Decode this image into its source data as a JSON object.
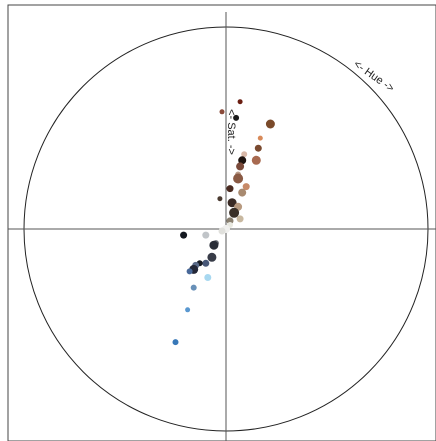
{
  "chart_data": {
    "type": "scatter",
    "title": "",
    "xlabel": "",
    "ylabel": "",
    "annotations": {
      "hue_label": "<- Hue ->",
      "sat_label": "<- Sat. ->"
    },
    "coordinate_system": "polar-colour-wheel",
    "grid": false,
    "legend": "none",
    "xlim": [
      -1,
      1
    ],
    "ylim": [
      -1,
      1
    ],
    "points": [
      {
        "x": 0.07,
        "y": 0.63,
        "size": 2.5,
        "color": "#6b1e12"
      },
      {
        "x": -0.02,
        "y": 0.58,
        "size": 2.5,
        "color": "#8a4a3a"
      },
      {
        "x": 0.05,
        "y": 0.55,
        "size": 3.0,
        "color": "#1a1a1a"
      },
      {
        "x": 0.22,
        "y": 0.52,
        "size": 4.5,
        "color": "#7a4a2a"
      },
      {
        "x": 0.17,
        "y": 0.45,
        "size": 2.5,
        "color": "#d88a5a"
      },
      {
        "x": 0.16,
        "y": 0.4,
        "size": 3.5,
        "color": "#7a4a30"
      },
      {
        "x": 0.09,
        "y": 0.37,
        "size": 3.0,
        "color": "#d8b8a8"
      },
      {
        "x": 0.15,
        "y": 0.34,
        "size": 4.5,
        "color": "#a86a50"
      },
      {
        "x": 0.08,
        "y": 0.34,
        "size": 4.0,
        "color": "#1e1410"
      },
      {
        "x": 0.07,
        "y": 0.31,
        "size": 4.0,
        "color": "#7a4a3a"
      },
      {
        "x": 0.06,
        "y": 0.27,
        "size": 3.0,
        "color": "#b89a88"
      },
      {
        "x": 0.06,
        "y": 0.25,
        "size": 5.0,
        "color": "#8a5a44"
      },
      {
        "x": 0.1,
        "y": 0.21,
        "size": 3.5,
        "color": "#c88a68"
      },
      {
        "x": 0.02,
        "y": 0.2,
        "size": 3.5,
        "color": "#4a2a20"
      },
      {
        "x": 0.08,
        "y": 0.18,
        "size": 4.0,
        "color": "#a88a70"
      },
      {
        "x": -0.03,
        "y": 0.15,
        "size": 2.5,
        "color": "#4a3a30"
      },
      {
        "x": 0.03,
        "y": 0.13,
        "size": 4.5,
        "color": "#3a2a24"
      },
      {
        "x": 0.06,
        "y": 0.11,
        "size": 4.0,
        "color": "#b89a80"
      },
      {
        "x": 0.04,
        "y": 0.08,
        "size": 5.0,
        "color": "#3a3028"
      },
      {
        "x": 0.07,
        "y": 0.05,
        "size": 3.5,
        "color": "#c8b8a0"
      },
      {
        "x": 0.02,
        "y": 0.04,
        "size": 3.5,
        "color": "#8a8070"
      },
      {
        "x": 0.02,
        "y": 0.02,
        "size": 3.0,
        "color": "#e8e8e0"
      },
      {
        "x": 0.0,
        "y": 0.0,
        "size": 4.0,
        "color": "#f0f0ee"
      },
      {
        "x": -0.02,
        "y": -0.01,
        "size": 3.5,
        "color": "#e0e0dc"
      },
      {
        "x": -0.1,
        "y": -0.03,
        "size": 3.5,
        "color": "#c0c4c8"
      },
      {
        "x": -0.21,
        "y": -0.03,
        "size": 3.5,
        "color": "#141820"
      },
      {
        "x": -0.05,
        "y": -0.07,
        "size": 3.0,
        "color": "#686c74"
      },
      {
        "x": -0.06,
        "y": -0.08,
        "size": 4.5,
        "color": "#2a2e38"
      },
      {
        "x": -0.07,
        "y": -0.14,
        "size": 4.5,
        "color": "#383c48"
      },
      {
        "x": -0.1,
        "y": -0.17,
        "size": 3.5,
        "color": "#485878"
      },
      {
        "x": -0.13,
        "y": -0.17,
        "size": 3.0,
        "color": "#181c24"
      },
      {
        "x": -0.15,
        "y": -0.18,
        "size": 3.5,
        "color": "#5a6a88"
      },
      {
        "x": -0.16,
        "y": -0.2,
        "size": 4.5,
        "color": "#242838"
      },
      {
        "x": -0.18,
        "y": -0.21,
        "size": 3.0,
        "color": "#486898"
      },
      {
        "x": -0.09,
        "y": -0.24,
        "size": 3.5,
        "color": "#a8d8f0"
      },
      {
        "x": -0.16,
        "y": -0.29,
        "size": 3.0,
        "color": "#6890b8"
      },
      {
        "x": -0.19,
        "y": -0.4,
        "size": 2.5,
        "color": "#5a98d0"
      },
      {
        "x": -0.25,
        "y": -0.56,
        "size": 3.0,
        "color": "#3878b8"
      }
    ]
  }
}
